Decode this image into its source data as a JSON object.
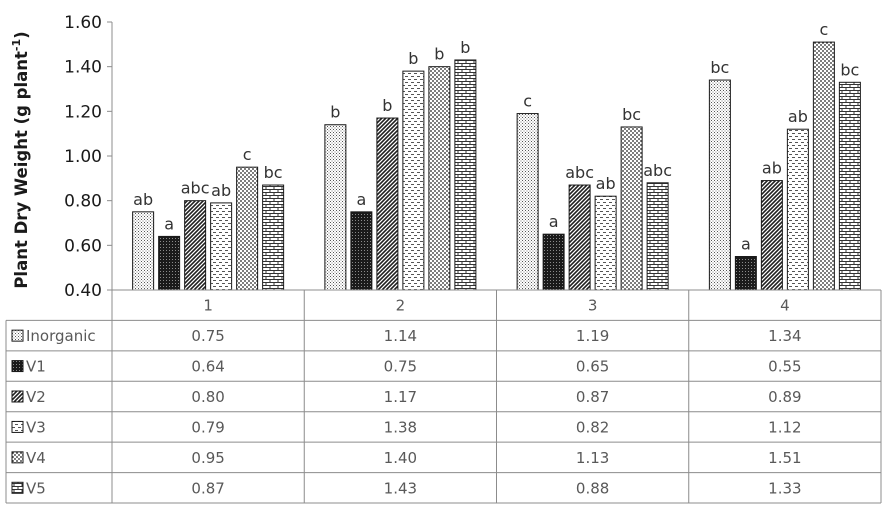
{
  "chart_data": {
    "type": "bar",
    "title": "",
    "xlabel": "",
    "ylabel_text": "Plant Dry Weight  (g plant",
    "ylabel_sup": "-1",
    "ylabel_close": ")",
    "ylim": [
      0.4,
      1.6
    ],
    "yticks": [
      "0.40",
      "0.60",
      "0.80",
      "1.00",
      "1.20",
      "1.40",
      "1.60"
    ],
    "ytick_values": [
      0.4,
      0.6,
      0.8,
      1.0,
      1.2,
      1.4,
      1.6
    ],
    "categories": [
      "1",
      "2",
      "3",
      "4"
    ],
    "legend_placement": "data-table-rows",
    "grid": false,
    "series": [
      {
        "name": "Inorganic",
        "pattern": "fine-dots",
        "values": [
          0.75,
          1.14,
          1.19,
          1.34
        ],
        "labels": [
          "0.75",
          "1.14",
          "1.19",
          "1.34"
        ],
        "letters": [
          "ab",
          "b",
          "c",
          "bc"
        ]
      },
      {
        "name": "V1",
        "pattern": "dense-dark",
        "values": [
          0.64,
          0.75,
          0.65,
          0.55
        ],
        "labels": [
          "0.64",
          "0.75",
          "0.65",
          "0.55"
        ],
        "letters": [
          "a",
          "a",
          "a",
          "a"
        ]
      },
      {
        "name": "V2",
        "pattern": "diagonal-lines",
        "values": [
          0.8,
          1.17,
          0.87,
          0.89
        ],
        "labels": [
          "0.80",
          "1.17",
          "0.87",
          "0.89"
        ],
        "letters": [
          "abc",
          "b",
          "abc",
          "ab"
        ]
      },
      {
        "name": "V3",
        "pattern": "dashes",
        "values": [
          0.79,
          1.38,
          0.82,
          1.12
        ],
        "labels": [
          "0.79",
          "1.38",
          "0.82",
          "1.12"
        ],
        "letters": [
          "ab",
          "b",
          "ab",
          "ab"
        ]
      },
      {
        "name": "V4",
        "pattern": "large-dots",
        "values": [
          0.95,
          1.4,
          1.13,
          1.51
        ],
        "labels": [
          "0.95",
          "1.40",
          "1.13",
          "1.51"
        ],
        "letters": [
          "c",
          "b",
          "bc",
          "c"
        ]
      },
      {
        "name": "V5",
        "pattern": "bricks",
        "values": [
          0.87,
          1.43,
          0.88,
          1.33
        ],
        "labels": [
          "0.87",
          "1.43",
          "0.88",
          "1.33"
        ],
        "letters": [
          "bc",
          "b",
          "abc",
          "bc"
        ]
      }
    ]
  }
}
